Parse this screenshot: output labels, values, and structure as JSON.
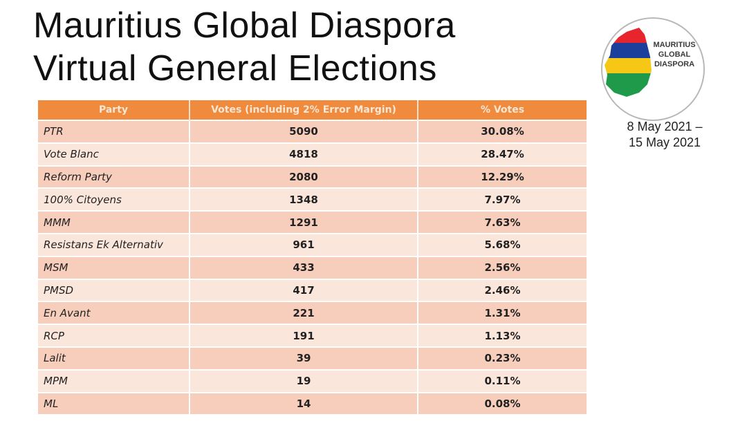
{
  "title": {
    "line1": "Mauritius Global Diaspora",
    "line2": "Virtual General Elections"
  },
  "logo": {
    "line1": "MAURITIUS",
    "line2": "GLOBAL",
    "line3": "DIASPORA",
    "colors": [
      "#e8242c",
      "#1b3f9a",
      "#f6c714",
      "#1f9a4a"
    ]
  },
  "dates": {
    "line1": "8 May 2021 –",
    "line2": "15 May 2021"
  },
  "table": {
    "headers": [
      "Party",
      "Votes (including 2% Error Margin)",
      "% Votes"
    ],
    "rows": [
      {
        "party": "PTR",
        "votes": "5090",
        "pct": "30.08%"
      },
      {
        "party": "Vote Blanc",
        "votes": "4818",
        "pct": "28.47%"
      },
      {
        "party": "Reform Party",
        "votes": "2080",
        "pct": "12.29%"
      },
      {
        "party": "100% Citoyens",
        "votes": "1348",
        "pct": "7.97%"
      },
      {
        "party": "MMM",
        "votes": "1291",
        "pct": "7.63%"
      },
      {
        "party": "Resistans Ek Alternativ",
        "votes": "961",
        "pct": "5.68%"
      },
      {
        "party": "MSM",
        "votes": "433",
        "pct": "2.56%"
      },
      {
        "party": "PMSD",
        "votes": "417",
        "pct": "2.46%"
      },
      {
        "party": "En Avant",
        "votes": "221",
        "pct": "1.31%"
      },
      {
        "party": "RCP",
        "votes": "191",
        "pct": "1.13%"
      },
      {
        "party": "Lalit",
        "votes": "39",
        "pct": "0.23%"
      },
      {
        "party": "MPM",
        "votes": "19",
        "pct": "0.11%"
      },
      {
        "party": "ML",
        "votes": "14",
        "pct": "0.08%"
      }
    ]
  }
}
